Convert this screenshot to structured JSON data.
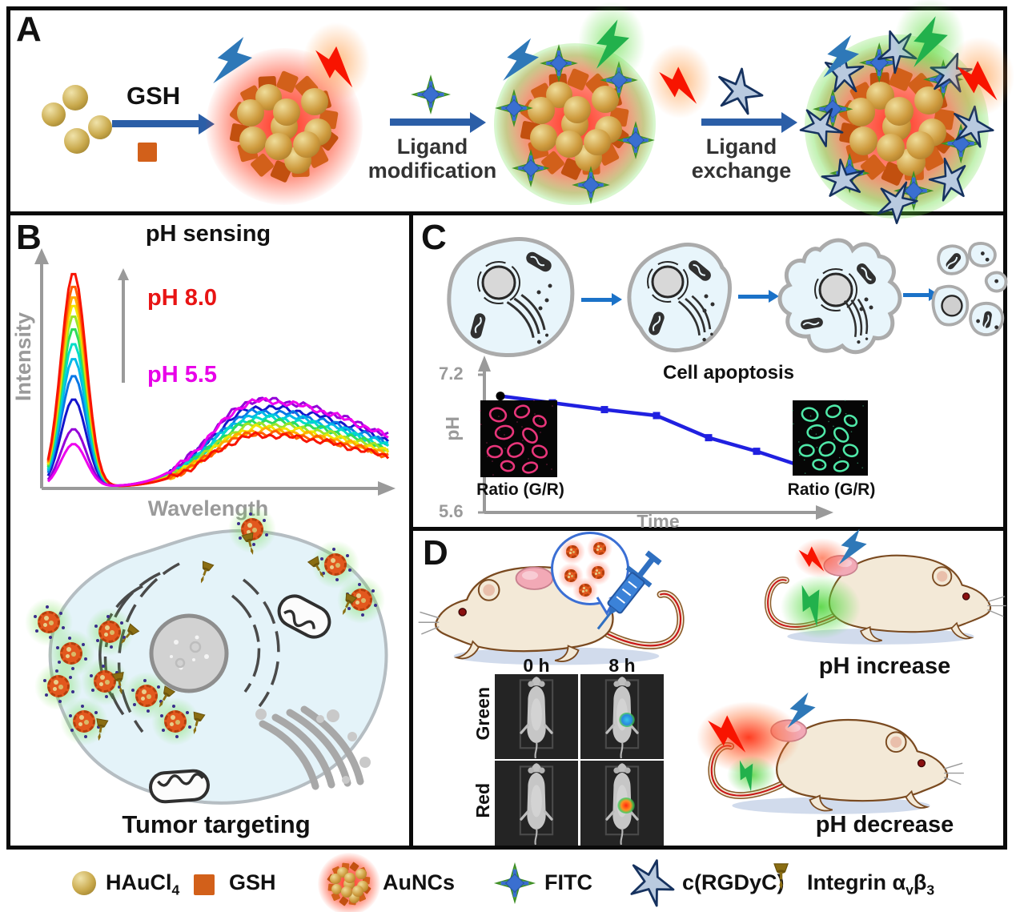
{
  "panelA": {
    "label": "A",
    "gsh_label": "GSH",
    "arrow1_line1": "Ligand",
    "arrow1_line2": "modification",
    "arrow2_line1": "Ligand",
    "arrow2_line2": "exchange"
  },
  "panelB": {
    "label": "B",
    "title": "pH sensing",
    "ylabel": "Intensity",
    "xlabel": "Wavelength",
    "ph_high": "pH 8.0",
    "ph_low": "pH 5.5",
    "caption": "Tumor targeting"
  },
  "panelC": {
    "label": "C",
    "caption": "Cell apoptosis",
    "tick_top": "7.2",
    "tick_bottom": "5.6",
    "ylabel": "pH",
    "xlabel": "Time",
    "inset_left_label": "Ratio (G/R)",
    "inset_right_label": "Ratio (G/R)"
  },
  "panelD": {
    "label": "D",
    "col_0h": "0 h",
    "col_8h": "8 h",
    "row_green": "Green",
    "row_red": "Red",
    "ph_increase": "pH increase",
    "ph_decrease": "pH decrease"
  },
  "legend": {
    "haucl4_main": "HAuCl",
    "haucl4_sub": "4",
    "gsh": "GSH",
    "auncs": "AuNCs",
    "fitc": "FITC",
    "crgdyc": "c(RGDyC)",
    "integrin_main": "Integrin α",
    "integrin_sub1": "v",
    "integrin_mid": "β",
    "integrin_sub2": "3"
  },
  "colors": {
    "arrow_blue": "#2B5EA7",
    "bolt_blue": "#2E78B8",
    "bolt_green": "#22B14C",
    "bolt_red": "#F81400",
    "gsh_orange": "#D2601A",
    "ph_high_red": "#E81414",
    "ph_low_magenta": "#E800E8",
    "axis_gray": "#9A9A9A",
    "cell_fill": "#E4F3F9",
    "star_fill": "#B9CADF",
    "star_stroke": "#16325F",
    "fitc_green": "#71C043",
    "fitc_blue": "#3A6FD0",
    "pin_gold": "#8A6D12",
    "line_blue": "#2020E0"
  },
  "chart_data": [
    {
      "id": "ph-sensing-spectra",
      "type": "line",
      "title": "pH sensing",
      "xlabel": "Wavelength",
      "ylabel": "Intensity",
      "annotations": [
        "pH 8.0",
        "pH 5.5"
      ],
      "legend_position": "none",
      "grid": false,
      "series": [
        {
          "ph": 5.5,
          "color": "#EE00EE",
          "peak1": 0.2,
          "peak2": 0.4
        },
        {
          "ph": 5.7,
          "color": "#9400D8",
          "peak1": 0.27,
          "peak2": 0.405
        },
        {
          "ph": 5.9,
          "color": "#1414CC",
          "peak1": 0.41,
          "peak2": 0.37
        },
        {
          "ph": 6.2,
          "color": "#0A78E6",
          "peak1": 0.52,
          "peak2": 0.35
        },
        {
          "ph": 6.4,
          "color": "#00B9E8",
          "peak1": 0.6,
          "peak2": 0.335
        },
        {
          "ph": 6.6,
          "color": "#00DCC8",
          "peak1": 0.67,
          "peak2": 0.32
        },
        {
          "ph": 6.8,
          "color": "#2EDC5A",
          "peak1": 0.74,
          "peak2": 0.305
        },
        {
          "ph": 7.0,
          "color": "#9CE42A",
          "peak1": 0.8,
          "peak2": 0.29
        },
        {
          "ph": 7.2,
          "color": "#F2E600",
          "peak1": 0.85,
          "peak2": 0.275
        },
        {
          "ph": 7.5,
          "color": "#FFAE00",
          "peak1": 0.89,
          "peak2": 0.262
        },
        {
          "ph": 7.7,
          "color": "#FF6000",
          "peak1": 0.94,
          "peak2": 0.25
        },
        {
          "ph": 8.0,
          "color": "#F81400",
          "peak1": 1.0,
          "peak2": 0.24
        }
      ]
    },
    {
      "id": "ph-vs-time",
      "type": "line",
      "title": "Cell apoptosis",
      "xlabel": "Time",
      "ylabel": "pH",
      "ylim": [
        5.6,
        7.2
      ],
      "y_ticks": [
        7.2,
        5.6
      ],
      "points": [
        6.95,
        6.87,
        6.79,
        6.72,
        6.46,
        6.3,
        6.12
      ],
      "line_color": "#2020E0",
      "marker_color": "#2020E0",
      "endpoint_color": "#000000"
    }
  ]
}
